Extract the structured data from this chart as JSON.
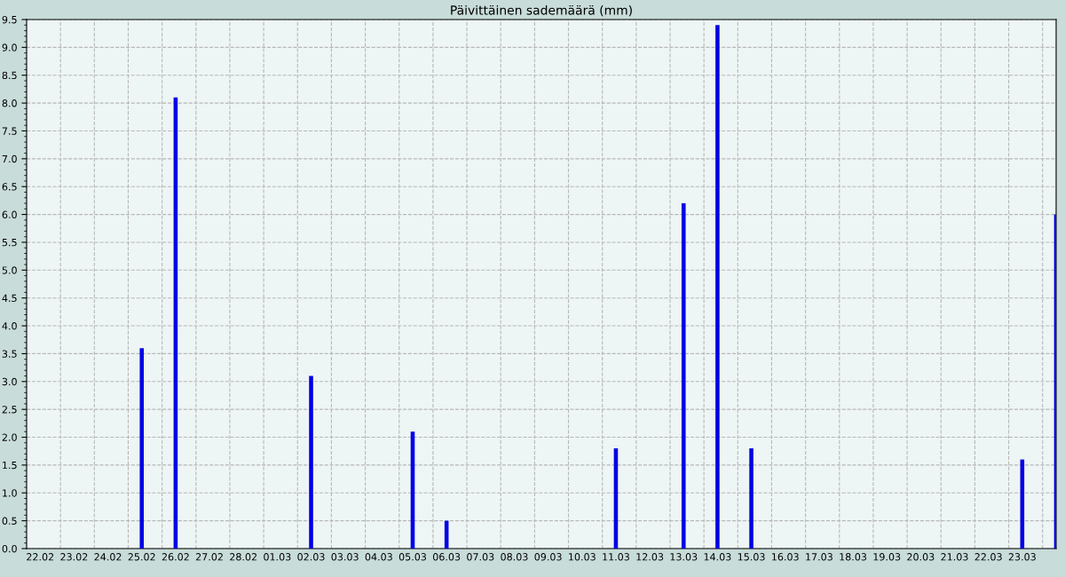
{
  "chart_data": {
    "type": "bar",
    "title": "Päivittäinen sademäärä (mm)",
    "categories": [
      "22.02",
      "23.02",
      "24.02",
      "25.02",
      "26.02",
      "27.02",
      "28.02",
      "01.03",
      "02.03",
      "03.03",
      "04.03",
      "05.03",
      "06.03",
      "07.03",
      "08.03",
      "09.03",
      "10.03",
      "11.03",
      "12.03",
      "13.03",
      "14.03",
      "15.03",
      "16.03",
      "17.03",
      "18.03",
      "19.03",
      "20.03",
      "21.03",
      "22.03",
      "23.03",
      null
    ],
    "values": [
      0,
      0,
      0,
      3.6,
      8.1,
      0,
      0,
      0,
      3.1,
      0,
      0,
      2.1,
      0.5,
      0,
      0,
      0,
      0,
      1.8,
      0,
      6.2,
      9.4,
      1.8,
      0,
      0,
      0,
      0,
      0,
      0,
      0,
      1.6,
      6.0
    ],
    "color": "#0000e6",
    "ylim": [
      0,
      9.5
    ],
    "yticks": [
      {
        "value": 0,
        "label": "0.0"
      },
      {
        "value": 0.5,
        "label": "0.5"
      },
      {
        "value": 1,
        "label": "1.0"
      },
      {
        "value": 1.5,
        "label": "1.5"
      },
      {
        "value": 2,
        "label": "2.0"
      },
      {
        "value": 2.5,
        "label": "2.5"
      },
      {
        "value": 3,
        "label": "3.0"
      },
      {
        "value": 3.5,
        "label": "3.5"
      },
      {
        "value": 4,
        "label": "4.0"
      },
      {
        "value": 4.5,
        "label": "4.5"
      },
      {
        "value": 5,
        "label": "5.0"
      },
      {
        "value": 5.5,
        "label": "5.5"
      },
      {
        "value": 6,
        "label": "6.0"
      },
      {
        "value": 6.5,
        "label": "6.5"
      },
      {
        "value": 7,
        "label": "7.0"
      },
      {
        "value": 7.5,
        "label": "7.5"
      },
      {
        "value": 8,
        "label": "8.0"
      },
      {
        "value": 8.5,
        "label": "8.5"
      },
      {
        "value": 9,
        "label": "9.0"
      },
      {
        "value": 9.5,
        "label": "9.5"
      }
    ],
    "grid": true,
    "line_style": "dashed"
  }
}
